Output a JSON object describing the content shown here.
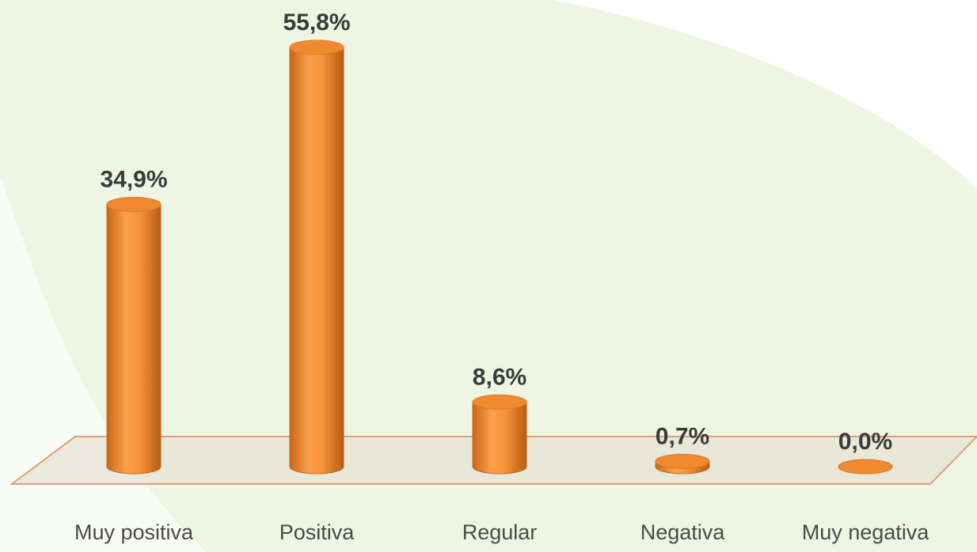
{
  "chart_data": {
    "type": "cylinder_bar",
    "categories": [
      "Muy positiva",
      "Positiva",
      "Regular",
      "Negativa",
      "Muy negativa"
    ],
    "values": [
      34.9,
      55.8,
      8.6,
      0.7,
      0.0
    ],
    "value_labels": [
      "34,9%",
      "55,8%",
      "8,6%",
      "0,7%",
      "0,0%"
    ],
    "color": "#f7943a"
  }
}
